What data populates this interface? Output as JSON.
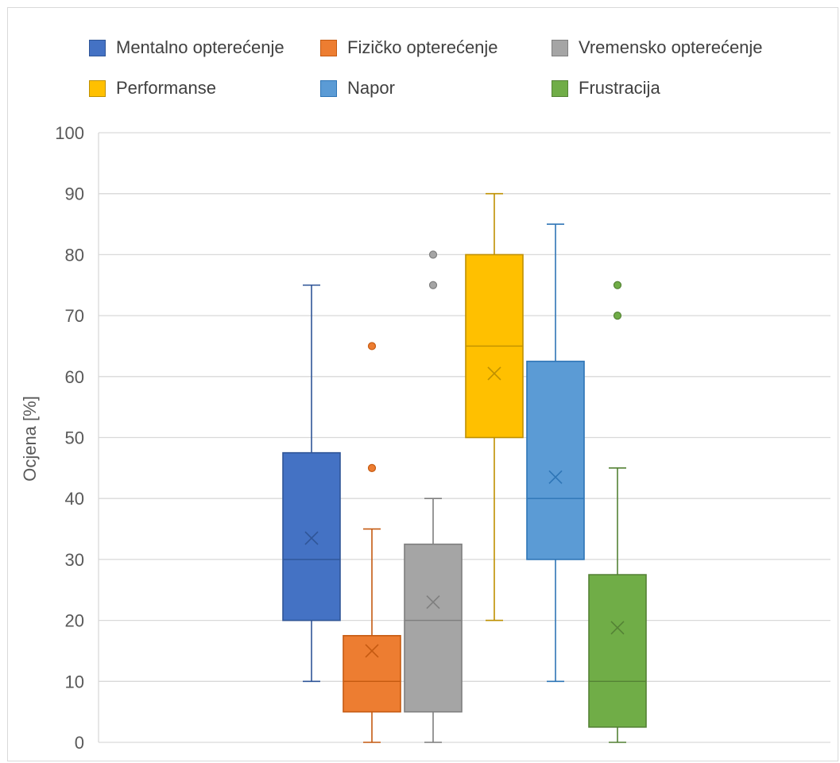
{
  "chart_data": {
    "type": "box",
    "ylabel": "Ocjena [%]",
    "ylim": [
      0,
      100
    ],
    "y_ticks": [
      "0",
      "10",
      "20",
      "30",
      "40",
      "50",
      "60",
      "70",
      "80",
      "90",
      "100"
    ],
    "grid": true,
    "legend_position": "top",
    "series": [
      {
        "name": "Mentalno opterećenje",
        "color": "#4472C4",
        "edge": "#2F5597",
        "min": 10,
        "q1": 20,
        "median": 30,
        "q3": 47.5,
        "max": 75,
        "mean": 33.5,
        "outliers": []
      },
      {
        "name": "Fizičko opterećenje",
        "color": "#ED7D31",
        "edge": "#C55A11",
        "min": 0,
        "q1": 5,
        "median": 10,
        "q3": 17.5,
        "max": 35,
        "mean": 15,
        "outliers": [
          45,
          65
        ]
      },
      {
        "name": "Vremensko opterećenje",
        "color": "#A5A5A5",
        "edge": "#7F7F7F",
        "min": 0,
        "q1": 5,
        "median": 20,
        "q3": 32.5,
        "max": 40,
        "mean": 23,
        "outliers": [
          75,
          80
        ]
      },
      {
        "name": "Performanse",
        "color": "#FFC000",
        "edge": "#BF9000",
        "min": 20,
        "q1": 50,
        "median": 65,
        "q3": 80,
        "max": 90,
        "mean": 60.5,
        "outliers": []
      },
      {
        "name": "Napor",
        "color": "#5B9BD5",
        "edge": "#2E75B6",
        "min": 10,
        "q1": 30,
        "median": 40,
        "q3": 62.5,
        "max": 85,
        "mean": 43.5,
        "outliers": []
      },
      {
        "name": "Frustracija",
        "color": "#70AD47",
        "edge": "#548235",
        "min": 0,
        "q1": 2.5,
        "median": 10,
        "q3": 27.5,
        "max": 45,
        "mean": 18.8,
        "outliers": [
          70,
          75
        ]
      }
    ]
  }
}
